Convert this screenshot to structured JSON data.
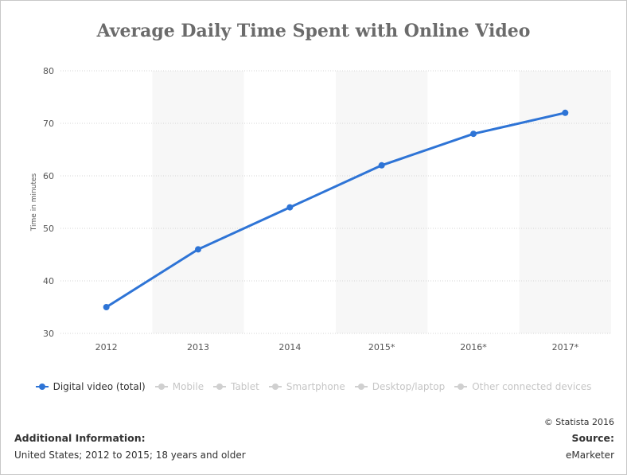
{
  "chart_data": {
    "type": "line",
    "title": "Average Daily Time Spent with Online Video",
    "xlabel": "",
    "ylabel": "Time in minutes",
    "categories": [
      "2012",
      "2013",
      "2014",
      "2015*",
      "2016*",
      "2017*"
    ],
    "series": [
      {
        "name": "Digital video (total)",
        "values": [
          35,
          46,
          54,
          62,
          68,
          72
        ],
        "color": "#2e74d6"
      }
    ],
    "ylim": [
      30,
      80
    ],
    "yticks": [
      30,
      40,
      50,
      60,
      70,
      80
    ],
    "grid": true,
    "legend_position": "bottom"
  },
  "legend": [
    {
      "label": "Digital video (total)",
      "active": true
    },
    {
      "label": "Mobile",
      "active": false
    },
    {
      "label": "Tablet",
      "active": false
    },
    {
      "label": "Smartphone",
      "active": false
    },
    {
      "label": "Desktop/laptop",
      "active": false
    },
    {
      "label": "Other connected devices",
      "active": false
    }
  ],
  "footer": {
    "copyright": "© Statista 2016",
    "additional_info_heading": "Additional Information:",
    "additional_info": "United States; 2012 to 2015; 18 years and older",
    "source_heading": "Source:",
    "source": "eMarketer"
  }
}
